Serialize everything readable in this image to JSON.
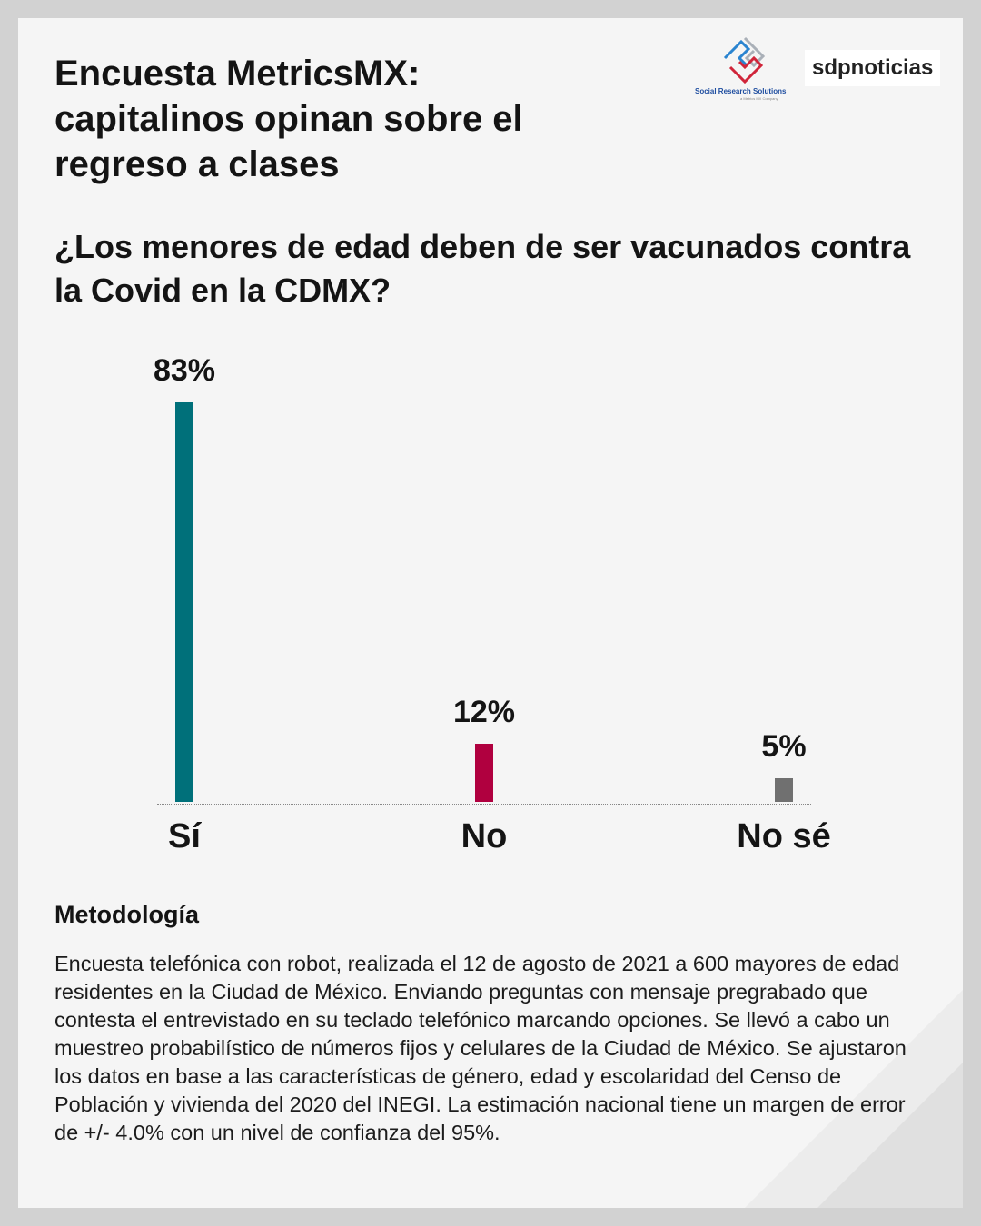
{
  "header": {
    "title": "Encuesta MetricsMX: capitalinos opinan sobre el regreso a clases",
    "logo_srs": "Social Research Solutions",
    "logo_srs_sub": "a Metrics MX Company",
    "logo_sdp": "sdpnoticias"
  },
  "chart_data": {
    "type": "bar",
    "title": "¿Los menores de edad deben de ser vacunados contra la Covid en la CDMX?",
    "categories": [
      "Sí",
      "No",
      "No sé"
    ],
    "values": [
      83,
      12,
      5
    ],
    "labels": [
      "83%",
      "12%",
      "5%"
    ],
    "colors": [
      "#00707a",
      "#b0003f",
      "#707070"
    ],
    "ylim": [
      0,
      100
    ],
    "xlabel": "",
    "ylabel": "",
    "grid": false
  },
  "methodology": {
    "heading": "Metodología",
    "text": "Encuesta telefónica con robot, realizada el 12 de agosto de 2021 a 600 mayores de edad residentes en la Ciudad de México. Enviando preguntas con mensaje pregrabado que contesta el entrevistado en su teclado telefónico marcando opciones. Se llevó a cabo un muestreo probabilístico de números fijos y celulares de la Ciudad de México. Se ajustaron los datos en base a las características de género, edad y escolaridad del Censo de Población y vivienda del 2020 del INEGI. La estimación nacional tiene un margen de error de +/- 4.0% con un nivel de confianza del 95%."
  }
}
